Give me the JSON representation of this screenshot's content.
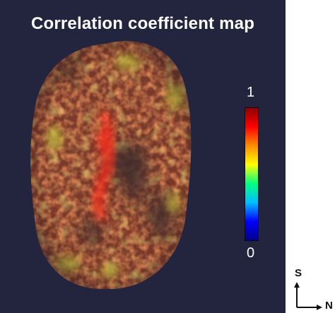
{
  "title": "Correlation coefficient map",
  "colorbar": {
    "max_label": "1",
    "min_label": "0",
    "colors": [
      "#8b0000",
      "#ff0000",
      "#ff8c00",
      "#ffff00",
      "#00ff7f",
      "#00bfff",
      "#0000ff",
      "#00008b"
    ]
  },
  "orientation": {
    "vertical_label": "S",
    "horizontal_label": "N"
  },
  "colors": {
    "background": "#23253f",
    "nucleus_base": "#7a3a2a",
    "dominant": "#e84a2a"
  }
}
